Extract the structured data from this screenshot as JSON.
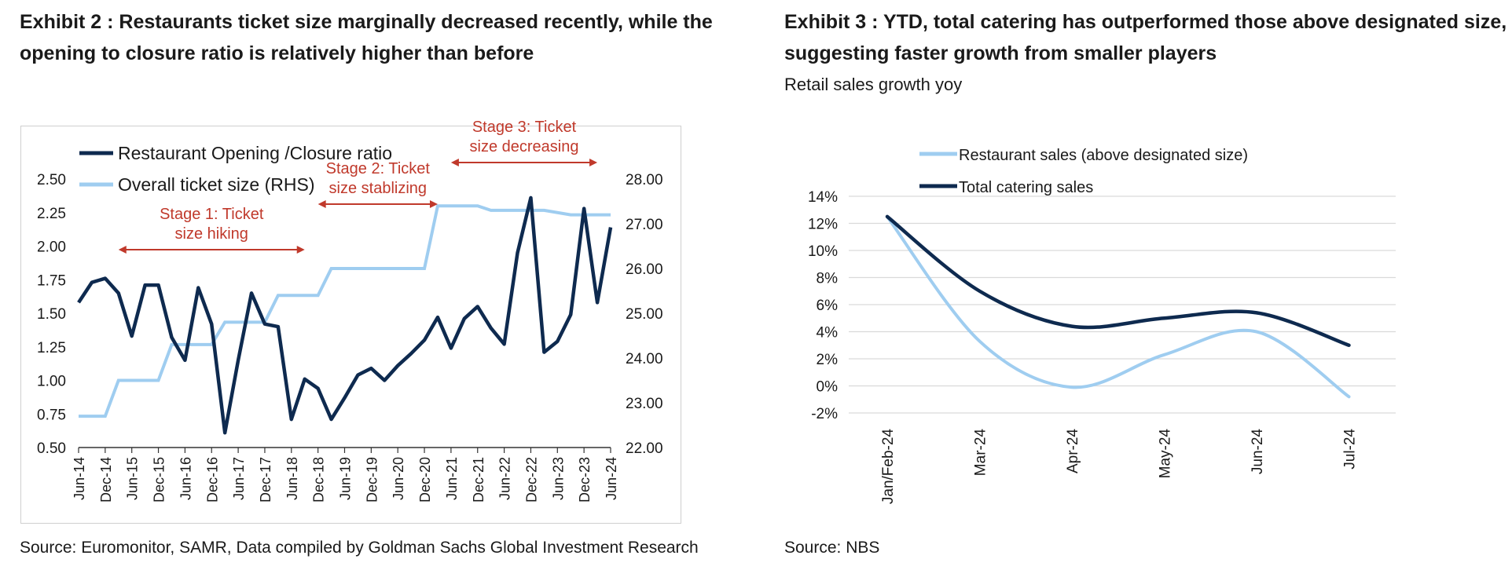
{
  "left": {
    "title_line1": "Exhibit 2 : Restaurants ticket size marginally decreased recently, while the",
    "title_line2": "opening to closure ratio is relatively higher than before",
    "source": "Source: Euromonitor, SAMR, Data compiled by Goldman Sachs Global Investment Research"
  },
  "right": {
    "title_line1": "Exhibit 3 : YTD, total catering has outperformed those above designated size,",
    "title_line2": "suggesting faster growth from smaller players",
    "subtitle": "Retail sales growth yoy",
    "source": "Source: NBS"
  },
  "colors": {
    "dark_navy": "#0e2a4f",
    "light_blue": "#9fcdf0",
    "annotation_red": "#c0392b",
    "grid": "#d9d9d9"
  },
  "chart_data": [
    {
      "type": "line",
      "legend_position": "top-left",
      "xlabels": [
        "Jun-14",
        "Dec-14",
        "Jun-15",
        "Dec-15",
        "Jun-16",
        "Dec-16",
        "Jun-17",
        "Dec-17",
        "Jun-18",
        "Dec-18",
        "Jun-19",
        "Dec-19",
        "Jun-20",
        "Dec-20",
        "Jun-21",
        "Dec-21",
        "Jun-22",
        "Dec-22",
        "Jun-23",
        "Dec-23",
        "Jun-24"
      ],
      "y_left": {
        "ticks": [
          "0.50",
          "0.75",
          "1.00",
          "1.25",
          "1.50",
          "1.75",
          "2.00",
          "2.25",
          "2.50"
        ],
        "ylim": [
          0.5,
          2.5
        ]
      },
      "y_right": {
        "ticks": [
          "22.00",
          "23.00",
          "24.00",
          "25.00",
          "26.00",
          "27.00",
          "28.00"
        ],
        "ylim": [
          22,
          28
        ]
      },
      "series": [
        {
          "name": "Restaurant Opening /Closure ratio",
          "axis": "left",
          "x": [
            0,
            0.5,
            1,
            1.5,
            2,
            2.5,
            3,
            3.5,
            4,
            4.5,
            5,
            5.5,
            6,
            6.5,
            7,
            7.5,
            8,
            8.5,
            9,
            9.5,
            10,
            10.5,
            11,
            11.5,
            12,
            12.5,
            13,
            13.5,
            14,
            14.5,
            15,
            15.5,
            16,
            16.5,
            17,
            17.5,
            18,
            18.5,
            19,
            19.5,
            20
          ],
          "values": [
            1.58,
            1.73,
            1.76,
            1.65,
            1.33,
            1.71,
            1.71,
            1.32,
            1.15,
            1.69,
            1.42,
            0.61,
            1.15,
            1.65,
            1.42,
            1.4,
            0.71,
            1.01,
            0.94,
            0.71,
            0.87,
            1.04,
            1.09,
            1.0,
            1.11,
            1.2,
            1.3,
            1.47,
            1.24,
            1.46,
            1.55,
            1.39,
            1.27,
            1.95,
            2.36,
            1.21,
            1.29,
            1.49,
            2.28,
            1.58,
            2.14
          ]
        },
        {
          "name": "Overall ticket size (RHS)",
          "axis": "right",
          "x": [
            0,
            1,
            1.5,
            3,
            3.5,
            5,
            5.5,
            7,
            7.5,
            9,
            9.5,
            13,
            13.5,
            15,
            15.5,
            17,
            17.5,
            18.5,
            19,
            20
          ],
          "values": [
            22.7,
            22.7,
            23.5,
            23.5,
            24.3,
            24.3,
            24.8,
            24.8,
            25.4,
            25.4,
            26.0,
            26.0,
            27.4,
            27.4,
            27.3,
            27.3,
            27.3,
            27.2,
            27.2,
            27.2
          ]
        }
      ],
      "annotations": [
        {
          "line1": "Stage 1: Ticket",
          "line2": "size hiking",
          "from": 1.5,
          "to": 8.5
        },
        {
          "line1": "Stage 2: Ticket",
          "line2": "size stablizing",
          "from": 9.0,
          "to": 13.5
        },
        {
          "line1": "Stage 3: Ticket",
          "line2": "size decreasing",
          "from": 14.0,
          "to": 19.5
        }
      ]
    },
    {
      "type": "line",
      "legend_position": "top-center",
      "categories": [
        "Jan/Feb-24",
        "Mar-24",
        "Apr-24",
        "May-24",
        "Jun-24",
        "Jul-24"
      ],
      "y_ticks": [
        "-2%",
        "0%",
        "2%",
        "4%",
        "6%",
        "8%",
        "10%",
        "12%",
        "14%"
      ],
      "ylim": [
        -2,
        14
      ],
      "series": [
        {
          "name": "Restaurant sales (above designated size)",
          "values": [
            12.5,
            3.3,
            -0.1,
            2.3,
            4.0,
            -0.8
          ]
        },
        {
          "name": "Total catering sales",
          "values": [
            12.5,
            7.0,
            4.4,
            5.0,
            5.4,
            3.0
          ]
        }
      ]
    }
  ]
}
